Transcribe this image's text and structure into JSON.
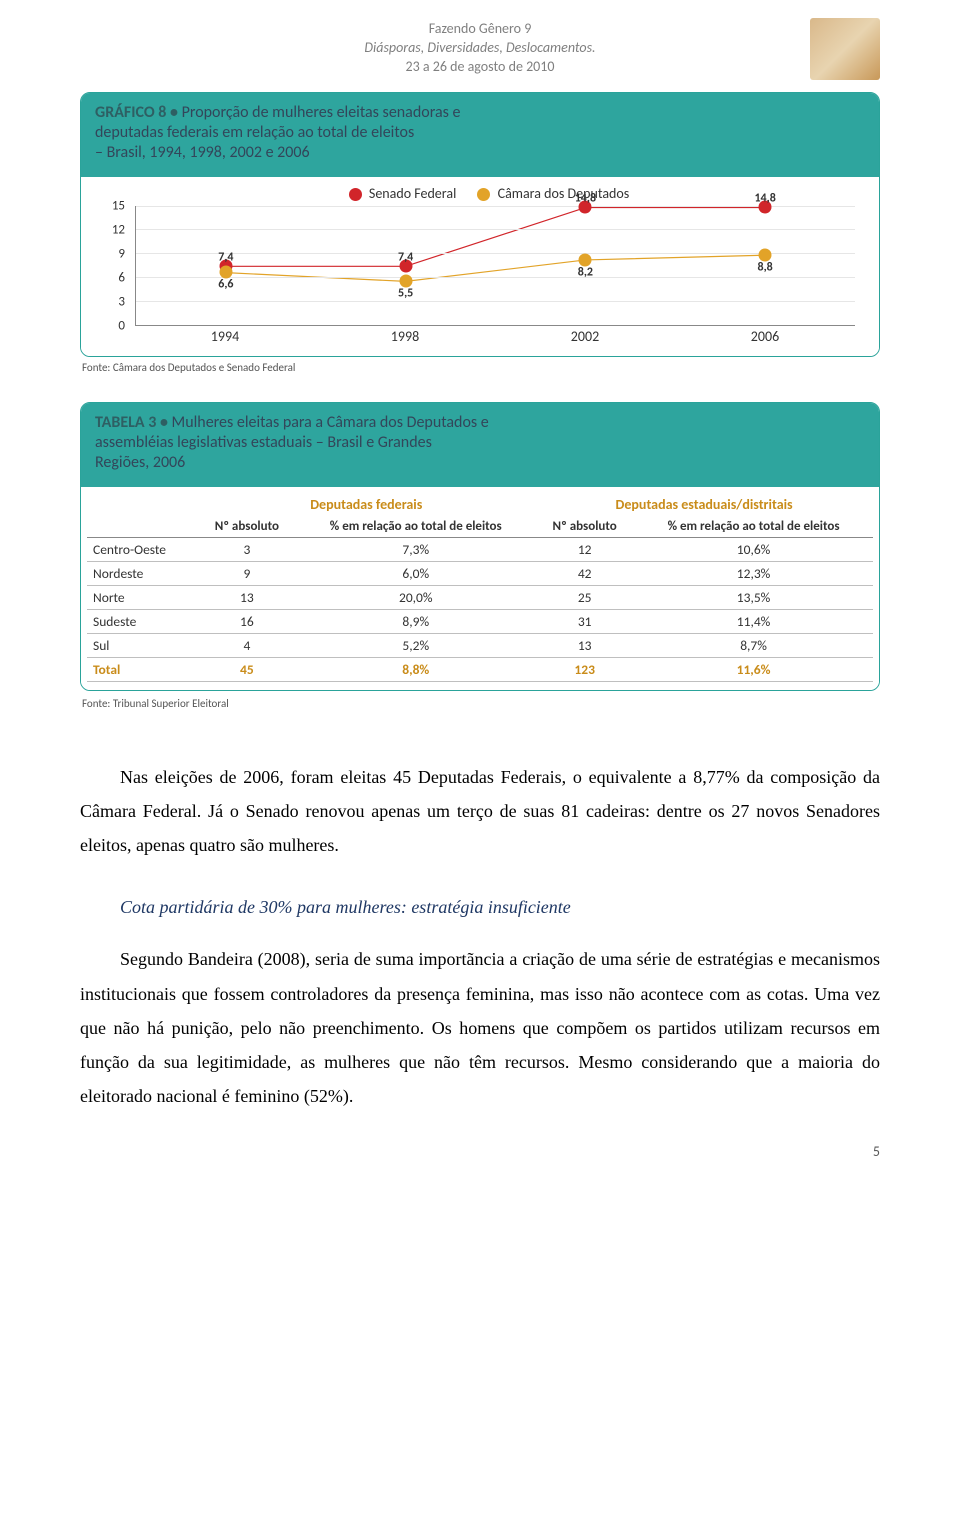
{
  "header": {
    "line1": "Fazendo Gênero 9",
    "line2": "Diásporas, Diversidades, Deslocamentos.",
    "line3": "23 a 26 de agosto de 2010"
  },
  "chart": {
    "label": "GRÁFICO 8 • ",
    "title_l1": "Proporção de mulheres eleitas senadoras e",
    "title_l2": "deputadas federais em relação ao total de eleitos",
    "title_l3": "– Brasil, 1994, 1998, 2002 e 2006",
    "legend": {
      "s1": "Senado Federal",
      "s1_color": "#d1252a",
      "s2": "Câmara dos Deputados",
      "s2_color": "#e2a328"
    },
    "y_ticks": [
      "0",
      "3",
      "6",
      "9",
      "12",
      "15"
    ],
    "y_max": 15,
    "x_labels": [
      "1994",
      "1998",
      "2002",
      "2006"
    ],
    "series": {
      "senado": {
        "color": "#d1252a",
        "values": [
          7.4,
          7.4,
          14.8,
          14.8
        ],
        "labels": [
          "7,4",
          "7,4",
          "14,8",
          "14,8"
        ],
        "label_pos": [
          "above",
          "above",
          "above",
          "above"
        ]
      },
      "camara": {
        "color": "#e2a328",
        "values": [
          6.6,
          5.5,
          8.2,
          8.8
        ],
        "labels": [
          "6,6",
          "5,5",
          "8,2",
          "8,8"
        ],
        "label_pos": [
          "below",
          "below",
          "below",
          "below"
        ]
      }
    },
    "source": "Fonte: Câmara dos Deputados e Senado Federal"
  },
  "table": {
    "label": "TABELA 3 • ",
    "title_l1": "Mulheres eleitas para a Câmara dos Deputados e",
    "title_l2": "assembléias legislativas estaduais – Brasil e Grandes",
    "title_l3": "Regiões, 2006",
    "group_headers": [
      "Deputadas federais",
      "Deputadas estaduais/distritais"
    ],
    "col_headers": [
      "Nº absoluto",
      "% em relação ao total de eleitos",
      "Nº absoluto",
      "% em relação ao total de eleitos"
    ],
    "rows": [
      {
        "region": "Centro-Oeste",
        "c1": "3",
        "c2": "7,3%",
        "c3": "12",
        "c4": "10,6%"
      },
      {
        "region": "Nordeste",
        "c1": "9",
        "c2": "6,0%",
        "c3": "42",
        "c4": "12,3%"
      },
      {
        "region": "Norte",
        "c1": "13",
        "c2": "20,0%",
        "c3": "25",
        "c4": "13,5%"
      },
      {
        "region": "Sudeste",
        "c1": "16",
        "c2": "8,9%",
        "c3": "31",
        "c4": "11,4%"
      },
      {
        "region": "Sul",
        "c1": "4",
        "c2": "5,2%",
        "c3": "13",
        "c4": "8,7%"
      }
    ],
    "total": {
      "region": "Total",
      "c1": "45",
      "c2": "8,8%",
      "c3": "123",
      "c4": "11,6%"
    },
    "source": "Fonte: Tribunal Superior Eleitoral"
  },
  "body": {
    "p1": "Nas eleições de 2006, foram eleitas 45 Deputadas Federais, o equivalente a 8,77% da composição da Câmara Federal. Já o Senado renovou apenas um terço de suas 81 cadeiras: dentre os 27 novos Senadores eleitos, apenas quatro são mulheres.",
    "subhead": "Cota partidária de 30% para mulheres: estratégia insuficiente",
    "p2": "Segundo Bandeira (2008), seria de suma importãncia  a criação de uma série de estratégias e mecanismos institucionais que fossem controladores da presença feminina, mas isso não acontece com as cotas. Uma vez que não há punição, pelo não preenchimento. Os homens que compõem os partidos utilizam recursos em função da sua legitimidade, as mulheres que não têm recursos. Mesmo considerando que a maioria do eleitorado nacional é feminino (52%)."
  },
  "page_number": "5"
}
